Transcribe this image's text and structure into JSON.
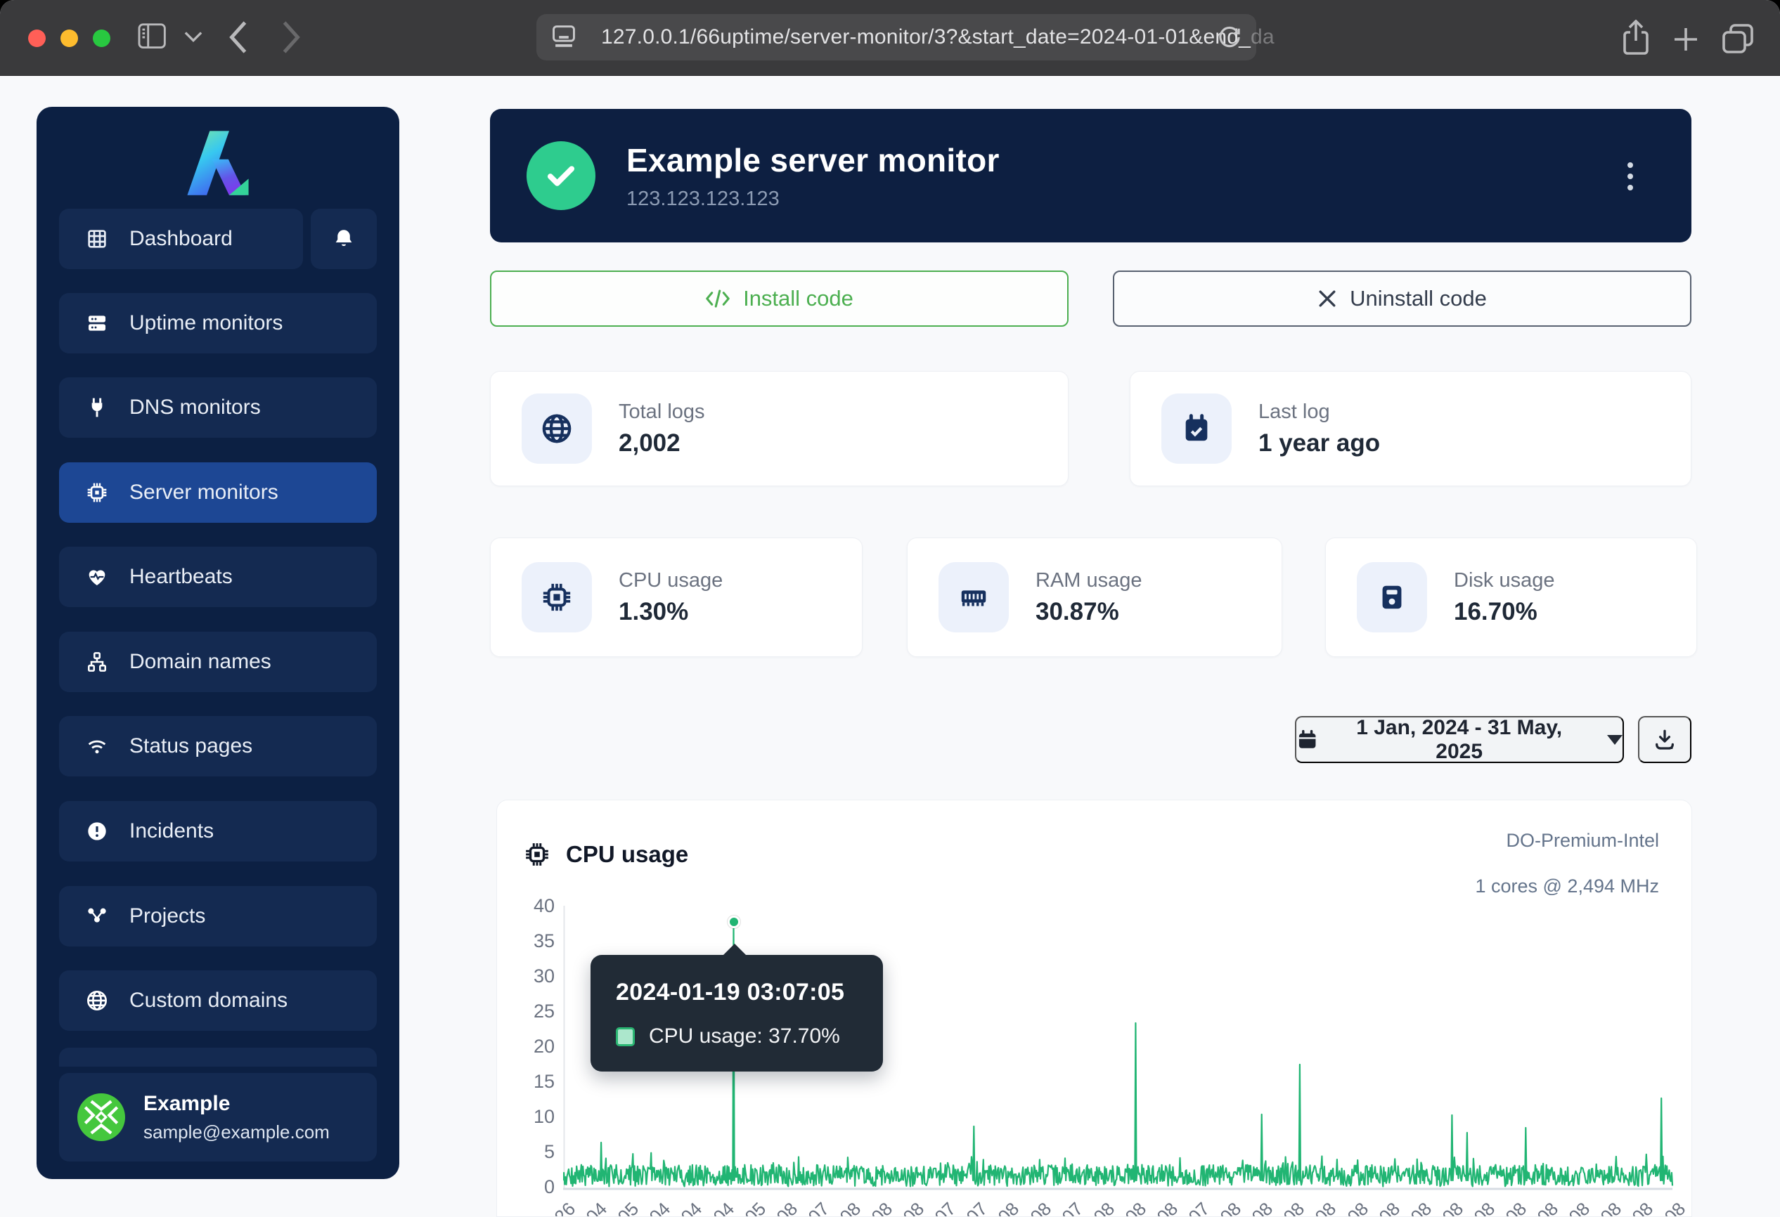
{
  "browser": {
    "url_main": "127.0.0.1/66uptime/server-monitor/3?&start_date=2024-01-01&end_",
    "url_fade": "da"
  },
  "sidebar": {
    "items": [
      {
        "label": "Dashboard"
      },
      {
        "label": "Uptime monitors"
      },
      {
        "label": "DNS monitors"
      },
      {
        "label": "Server monitors"
      },
      {
        "label": "Heartbeats"
      },
      {
        "label": "Domain names"
      },
      {
        "label": "Status pages"
      },
      {
        "label": "Incidents"
      },
      {
        "label": "Projects"
      },
      {
        "label": "Custom domains"
      }
    ],
    "active_item": "Server monitors",
    "profile": {
      "name": "Example",
      "email": "sample@example.com"
    }
  },
  "header": {
    "title": "Example server monitor",
    "subtitle": "123.123.123.123",
    "status": "up"
  },
  "actions": {
    "install": "Install code",
    "uninstall": "Uninstall code"
  },
  "stats": {
    "cards": [
      {
        "label": "Total logs",
        "value": "2,002"
      },
      {
        "label": "Last log",
        "value": "1 year ago"
      },
      {
        "label": "CPU usage",
        "value": "1.30%"
      },
      {
        "label": "RAM usage",
        "value": "30.87%"
      },
      {
        "label": "Disk usage",
        "value": "16.70%"
      }
    ]
  },
  "daterange": {
    "label": "1 Jan, 2024 - 31 May, 2025"
  },
  "colors": {
    "chart_green": "#21b573",
    "check_green": "#2ecc8e",
    "install_green": "#4caf50",
    "sidebar_bg": "#0c2043",
    "sidebar_item_bg": "#142a51",
    "sidebar_active_bg": "#1d4794",
    "hero_bg": "#0d1f41"
  },
  "chart_data": {
    "type": "line",
    "title": "CPU usage",
    "server_name": "DO-Premium-Intel",
    "server_spec": "1 cores @ 2,494 MHz",
    "series": [
      {
        "name": "CPU usage",
        "color": "#21b573"
      }
    ],
    "ylim": [
      0,
      40
    ],
    "yticks": [
      40,
      35,
      30,
      25,
      20,
      15,
      10,
      5,
      0
    ],
    "grid": false,
    "legend": "none",
    "x_tick_labels": [
      "26",
      "04",
      "05",
      "04",
      "04",
      "04",
      "05",
      "08",
      "07",
      "08",
      "08",
      "08",
      "07",
      "07",
      "08",
      "08",
      "07",
      "08",
      "08",
      "08",
      "07",
      "08",
      "08",
      "08",
      "08",
      "08",
      "08",
      "08",
      "08",
      "08",
      "08",
      "08",
      "08",
      "08",
      "08",
      "08"
    ],
    "baseline_noise_range": [
      0.2,
      3.4
    ],
    "spikes": [
      {
        "x_frac": 0.034,
        "value": 6.3
      },
      {
        "x_frac": 0.154,
        "value": 37.7
      },
      {
        "x_frac": 0.37,
        "value": 8.6
      },
      {
        "x_frac": 0.516,
        "value": 23.3
      },
      {
        "x_frac": 0.63,
        "value": 10.3
      },
      {
        "x_frac": 0.664,
        "value": 17.4
      },
      {
        "x_frac": 0.801,
        "value": 10.2
      },
      {
        "x_frac": 0.815,
        "value": 7.7
      },
      {
        "x_frac": 0.868,
        "value": 8.4
      },
      {
        "x_frac": 0.99,
        "value": 12.6
      }
    ],
    "tooltip": {
      "title": "2024-01-19 03:07:05",
      "label": "CPU usage: 37.70%",
      "value": 37.7,
      "x_frac": 0.154
    }
  }
}
